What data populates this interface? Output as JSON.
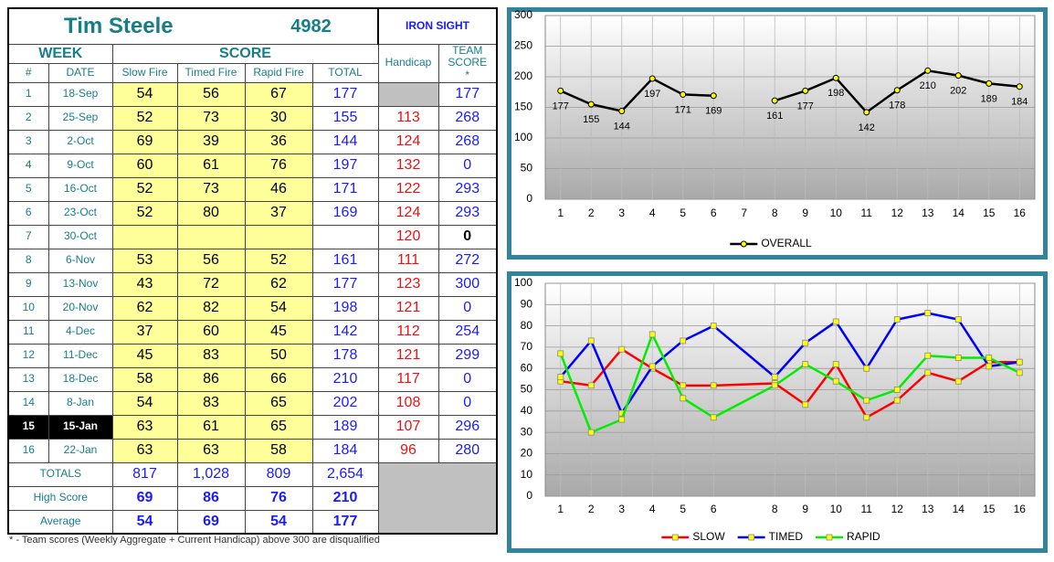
{
  "header": {
    "name": "Tim Steele",
    "id": "4982",
    "team": "IRON SIGHT"
  },
  "table": {
    "group_headers": [
      "WEEK",
      "SCORE"
    ],
    "columns": [
      "#",
      "DATE",
      "Slow Fire",
      "Timed Fire",
      "Rapid Fire",
      "TOTAL"
    ],
    "handicap_header": "Handicap",
    "team_header": "TEAM SCORE *",
    "rows": [
      [
        1,
        "18-Sep",
        54,
        56,
        67,
        177,
        null,
        177
      ],
      [
        2,
        "25-Sep",
        52,
        73,
        30,
        155,
        113,
        268
      ],
      [
        3,
        "2-Oct",
        69,
        39,
        36,
        144,
        124,
        268
      ],
      [
        4,
        "9-Oct",
        60,
        61,
        76,
        197,
        132,
        0
      ],
      [
        5,
        "16-Oct",
        52,
        73,
        46,
        171,
        122,
        293
      ],
      [
        6,
        "23-Oct",
        52,
        80,
        37,
        169,
        124,
        293
      ],
      [
        7,
        "30-Oct",
        null,
        null,
        null,
        null,
        120,
        0
      ],
      [
        8,
        "6-Nov",
        53,
        56,
        52,
        161,
        111,
        272
      ],
      [
        9,
        "13-Nov",
        43,
        72,
        62,
        177,
        123,
        300
      ],
      [
        10,
        "20-Nov",
        62,
        82,
        54,
        198,
        121,
        0
      ],
      [
        11,
        "4-Dec",
        37,
        60,
        45,
        142,
        112,
        254
      ],
      [
        12,
        "11-Dec",
        45,
        83,
        50,
        178,
        121,
        299
      ],
      [
        13,
        "18-Dec",
        58,
        86,
        66,
        210,
        117,
        0
      ],
      [
        14,
        "8-Jan",
        54,
        83,
        65,
        202,
        108,
        0
      ],
      [
        15,
        "15-Jan",
        63,
        61,
        65,
        189,
        107,
        296
      ],
      [
        16,
        "22-Jan",
        63,
        63,
        58,
        184,
        96,
        280
      ]
    ],
    "summary": [
      {
        "label": "TOTALS",
        "values": [
          817,
          "1,028",
          809,
          "2,654"
        ]
      },
      {
        "label": "High Score",
        "values": [
          69,
          86,
          76,
          210
        ]
      },
      {
        "label": "Average",
        "values": [
          54,
          69,
          54,
          177
        ]
      }
    ]
  },
  "footnote": "* - Team scores (Weekly Aggregate + Current Handicap) above 300 are disqualified",
  "chart_data": [
    {
      "type": "line",
      "x": [
        1,
        2,
        3,
        4,
        5,
        6,
        7,
        8,
        9,
        10,
        11,
        12,
        13,
        14,
        15,
        16
      ],
      "series": [
        {
          "name": "OVERALL",
          "color": "#000000",
          "marker": "circle",
          "marker_color": "#ffff00",
          "values": [
            177,
            155,
            144,
            197,
            171,
            169,
            null,
            161,
            177,
            198,
            142,
            178,
            210,
            202,
            189,
            184
          ]
        }
      ],
      "xlim": [
        0.5,
        16.5
      ],
      "xticks": [
        1,
        2,
        3,
        4,
        5,
        6,
        7,
        8,
        9,
        10,
        11,
        12,
        13,
        14,
        15,
        16
      ],
      "ylim": [
        0,
        300
      ],
      "yticks": [
        0,
        50,
        100,
        150,
        200,
        250,
        300
      ],
      "grid": true,
      "data_labels": true,
      "legend": "bottom"
    },
    {
      "type": "line",
      "x": [
        1,
        2,
        3,
        4,
        5,
        6,
        8,
        9,
        10,
        11,
        12,
        13,
        14,
        15,
        16
      ],
      "series": [
        {
          "name": "SLOW",
          "color": "#ff0000",
          "marker": "square",
          "marker_color": "#ffff00",
          "values": [
            54,
            52,
            69,
            60,
            52,
            52,
            53,
            43,
            62,
            37,
            45,
            58,
            54,
            63,
            63
          ]
        },
        {
          "name": "TIMED",
          "color": "#0000ff",
          "marker": "square",
          "marker_color": "#ffff00",
          "values": [
            56,
            73,
            39,
            61,
            73,
            80,
            56,
            72,
            82,
            60,
            83,
            86,
            83,
            61,
            63
          ]
        },
        {
          "name": "RAPID",
          "color": "#00ee00",
          "marker": "square",
          "marker_color": "#ffff00",
          "values": [
            67,
            30,
            36,
            76,
            46,
            37,
            52,
            62,
            54,
            45,
            50,
            66,
            65,
            65,
            58
          ]
        }
      ],
      "xlim": [
        0.5,
        16.5
      ],
      "xticks": [
        1,
        2,
        3,
        4,
        5,
        6,
        8,
        9,
        10,
        11,
        12,
        13,
        14,
        15,
        16
      ],
      "ylim": [
        0,
        100
      ],
      "yticks": [
        0,
        10,
        20,
        30,
        40,
        50,
        60,
        70,
        80,
        90,
        100
      ],
      "grid": true,
      "data_labels": false,
      "legend": "bottom"
    }
  ]
}
